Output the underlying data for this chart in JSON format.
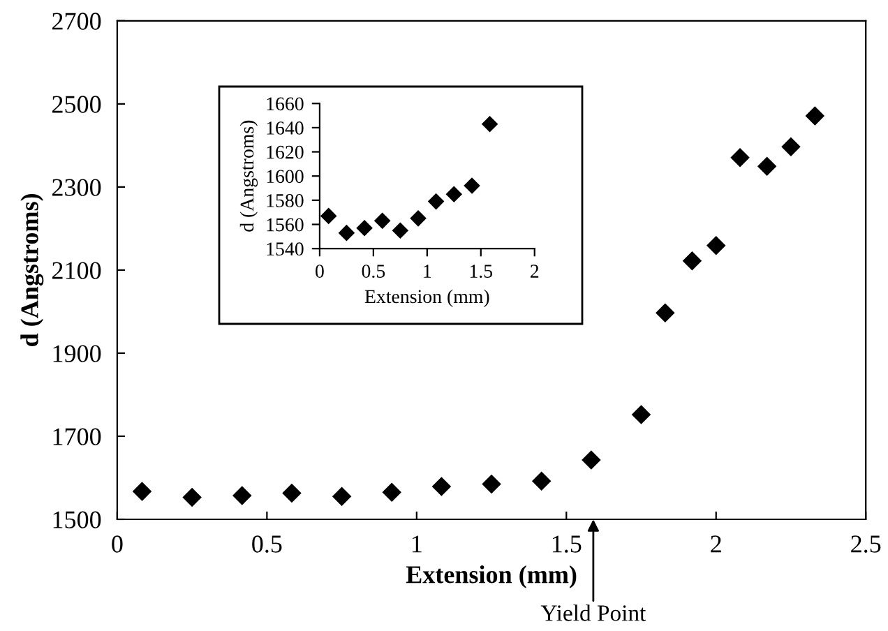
{
  "chart_data": [
    {
      "type": "scatter",
      "xlabel": "Extension (mm)",
      "ylabel": "d (Angstroms)",
      "x": [
        0.083,
        0.25,
        0.417,
        0.583,
        0.75,
        0.917,
        1.083,
        1.25,
        1.417,
        1.583,
        1.75,
        1.83,
        1.92,
        2.0,
        2.08,
        2.17,
        2.25,
        2.33
      ],
      "series": [
        {
          "color": "#000000",
          "values": [
            1567,
            1553,
            1557,
            1563,
            1555,
            1565,
            1579,
            1585,
            1592,
            1643,
            1752,
            1997,
            2122,
            2159,
            2371,
            2350,
            2397,
            2471
          ]
        }
      ],
      "xlim": [
        0,
        2.5
      ],
      "xticks": [
        0,
        0.5,
        1,
        1.5,
        2,
        2.5
      ],
      "ylim": [
        1500,
        2700
      ],
      "yticks": [
        1500,
        1700,
        1900,
        2100,
        2300,
        2500,
        2700
      ],
      "marker": "diamond",
      "grid": false,
      "legend": false,
      "annotations": [
        "Yield Point"
      ]
    },
    {
      "type": "scatter",
      "xlabel": "Extension (mm)",
      "ylabel": "d (Angstroms)",
      "x": [
        0.083,
        0.25,
        0.417,
        0.583,
        0.75,
        0.917,
        1.083,
        1.25,
        1.417,
        1.583
      ],
      "series": [
        {
          "color": "#000000",
          "values": [
            1567,
            1553,
            1557,
            1563,
            1555,
            1565,
            1579,
            1585,
            1592,
            1643
          ]
        }
      ],
      "xlim": [
        0,
        2
      ],
      "xticks": [
        0,
        0.5,
        1,
        1.5,
        2
      ],
      "ylim": [
        1540,
        1660
      ],
      "yticks": [
        1540,
        1560,
        1580,
        1600,
        1620,
        1640,
        1660
      ],
      "marker": "diamond",
      "grid": false,
      "legend": false
    }
  ]
}
